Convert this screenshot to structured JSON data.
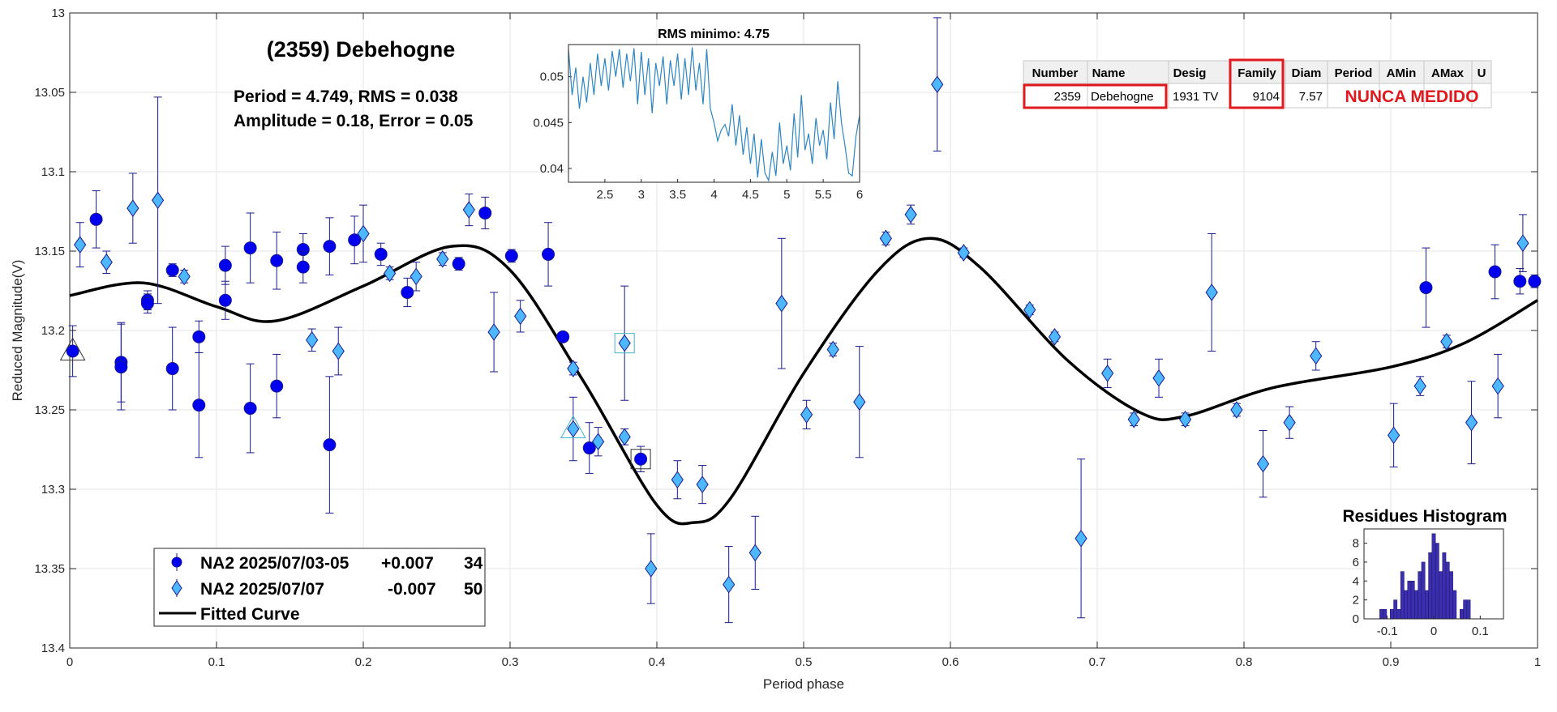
{
  "chart_data": [
    {
      "type": "scatter",
      "title": "(2359) Debehogne",
      "annotation_lines": [
        "Period =  4.749, RMS = 0.038",
        "Amplitude = 0.18, Error = 0.05"
      ],
      "xlabel": "Period phase",
      "ylabel": "Reduced Magnitude(V)",
      "xlim": [
        0,
        1
      ],
      "ylim": [
        13.4,
        13.0
      ],
      "y_reversed": true,
      "grid": true,
      "xticks": [
        "0",
        "0.1",
        "0.2",
        "0.3",
        "0.4",
        "0.5",
        "0.6",
        "0.7",
        "0.8",
        "0.9",
        "1"
      ],
      "yticks": [
        "13",
        "13.05",
        "13.1",
        "13.15",
        "13.2",
        "13.25",
        "13.3",
        "13.35",
        "13.4"
      ],
      "legend_position": "bottom-left",
      "legend": [
        {
          "label": "NA2 2025/07/03-05",
          "offset": "+0.007",
          "count": "34",
          "marker": "circle"
        },
        {
          "label": "NA2 2025/07/07",
          "offset": "-0.007",
          "count": "50",
          "marker": "diamond"
        },
        {
          "label": "Fitted Curve",
          "offset": "",
          "count": "",
          "marker": "line"
        }
      ],
      "colors": {
        "series1": "#0000ee",
        "series2": "#4db8ff",
        "curve": "#000000",
        "errorbar": "#1a1a8c"
      },
      "series": [
        {
          "name": "NA2 2025/07/03-05",
          "marker": "circle",
          "points": [
            [
              0.018,
              13.13,
              0.018
            ],
            [
              0.035,
              13.22,
              0.025
            ],
            [
              0.035,
              13.223,
              0.027
            ],
            [
              0.053,
              13.181,
              0.006
            ],
            [
              0.053,
              13.183,
              0.006
            ],
            [
              0.07,
              13.162,
              0.004
            ],
            [
              0.07,
              13.224,
              0.026
            ],
            [
              0.088,
              13.247,
              0.033
            ],
            [
              0.088,
              13.204,
              0.01
            ],
            [
              0.106,
              13.159,
              0.012
            ],
            [
              0.106,
              13.181,
              0.012
            ],
            [
              0.123,
              13.148,
              0.022
            ],
            [
              0.123,
              13.249,
              0.028
            ],
            [
              0.141,
              13.156,
              0.018
            ],
            [
              0.141,
              13.235,
              0.02
            ],
            [
              0.159,
              13.149,
              0.01
            ],
            [
              0.159,
              13.16,
              0.01
            ],
            [
              0.177,
              13.147,
              0.018
            ],
            [
              0.177,
              13.272,
              0.043
            ],
            [
              0.194,
              13.143,
              0.015
            ],
            [
              0.212,
              13.152,
              0.007
            ],
            [
              0.23,
              13.176,
              0.009
            ],
            [
              0.265,
              13.158,
              0.004
            ],
            [
              0.283,
              13.126,
              0.01
            ],
            [
              0.301,
              13.153,
              0.004
            ],
            [
              0.326,
              13.152,
              0.02
            ],
            [
              0.336,
              13.204,
              0.003
            ],
            [
              0.354,
              13.274,
              0.016
            ],
            [
              0.389,
              13.281,
              0.008
            ],
            [
              0.924,
              13.173,
              0.025
            ],
            [
              0.971,
              13.163,
              0.017
            ],
            [
              0.988,
              13.169,
              0.008
            ],
            [
              0.002,
              13.213,
              0.016
            ],
            [
              0.998,
              13.169,
              0.004
            ]
          ]
        },
        {
          "name": "NA2 2025/07/07",
          "marker": "diamond",
          "points": [
            [
              0.007,
              13.146,
              0.014
            ],
            [
              0.025,
              13.157,
              0.007
            ],
            [
              0.043,
              13.123,
              0.022
            ],
            [
              0.06,
              13.118,
              0.065
            ],
            [
              0.078,
              13.166,
              0.004
            ],
            [
              0.165,
              13.206,
              0.007
            ],
            [
              0.183,
              13.213,
              0.015
            ],
            [
              0.2,
              13.139,
              0.018
            ],
            [
              0.218,
              13.164,
              0.004
            ],
            [
              0.236,
              13.166,
              0.009
            ],
            [
              0.254,
              13.155,
              0.004
            ],
            [
              0.272,
              13.124,
              0.01
            ],
            [
              0.289,
              13.201,
              0.025
            ],
            [
              0.307,
              13.191,
              0.01
            ],
            [
              0.343,
              13.262,
              0.02
            ],
            [
              0.343,
              13.224,
              0.004
            ],
            [
              0.36,
              13.27,
              0.009
            ],
            [
              0.378,
              13.267,
              0.005
            ],
            [
              0.378,
              13.208,
              0.036
            ],
            [
              0.396,
              13.35,
              0.022
            ],
            [
              0.414,
              13.294,
              0.012
            ],
            [
              0.431,
              13.297,
              0.012
            ],
            [
              0.449,
              13.36,
              0.024
            ],
            [
              0.467,
              13.34,
              0.023
            ],
            [
              0.485,
              13.183,
              0.041
            ],
            [
              0.502,
              13.253,
              0.009
            ],
            [
              0.52,
              13.212,
              0.004
            ],
            [
              0.538,
              13.245,
              0.035
            ],
            [
              0.556,
              13.142,
              0.004
            ],
            [
              0.573,
              13.127,
              0.006
            ],
            [
              0.591,
              13.045,
              0.042
            ],
            [
              0.609,
              13.151,
              0.003
            ],
            [
              0.654,
              13.187,
              0.003
            ],
            [
              0.671,
              13.204,
              0.003
            ],
            [
              0.689,
              13.331,
              0.05
            ],
            [
              0.707,
              13.227,
              0.009
            ],
            [
              0.725,
              13.256,
              0.004
            ],
            [
              0.742,
              13.23,
              0.012
            ],
            [
              0.76,
              13.256,
              0.004
            ],
            [
              0.778,
              13.176,
              0.037
            ],
            [
              0.795,
              13.25,
              0.004
            ],
            [
              0.813,
              13.284,
              0.021
            ],
            [
              0.831,
              13.258,
              0.01
            ],
            [
              0.849,
              13.216,
              0.009
            ],
            [
              0.902,
              13.266,
              0.02
            ],
            [
              0.92,
              13.235,
              0.006
            ],
            [
              0.938,
              13.207,
              0.004
            ],
            [
              0.955,
              13.258,
              0.026
            ],
            [
              0.973,
              13.235,
              0.02
            ],
            [
              0.99,
              13.145,
              0.018
            ]
          ]
        }
      ],
      "fitted_curve": {
        "x": [
          0,
          0.05,
          0.1,
          0.14,
          0.2,
          0.26,
          0.3,
          0.35,
          0.4,
          0.425,
          0.45,
          0.5,
          0.55,
          0.585,
          0.62,
          0.68,
          0.73,
          0.76,
          0.82,
          0.9,
          0.95,
          1
        ],
        "y": [
          13.178,
          13.17,
          13.185,
          13.194,
          13.172,
          13.147,
          13.162,
          13.232,
          13.31,
          13.321,
          13.306,
          13.227,
          13.163,
          13.142,
          13.16,
          13.219,
          13.252,
          13.254,
          13.236,
          13.223,
          13.208,
          13.181
        ]
      },
      "highlighted_points": [
        {
          "x": 0.002,
          "y": 13.213,
          "marker": "triangle"
        },
        {
          "x": 0.343,
          "y": 13.262,
          "marker": "triangle"
        },
        {
          "x": 0.378,
          "y": 13.208,
          "marker": "square"
        },
        {
          "x": 0.389,
          "y": 13.281,
          "marker": "square"
        }
      ]
    },
    {
      "type": "line",
      "title": "RMS minimo: 4.75",
      "xlim": [
        2,
        6
      ],
      "ylim": [
        0.0385,
        0.0535
      ],
      "xticks": [
        "2.5",
        "3",
        "3.5",
        "4",
        "4.5",
        "5",
        "5.5",
        "6"
      ],
      "yticks": [
        "0.04",
        "0.045",
        "0.05"
      ],
      "x": [
        2.0,
        2.05,
        2.1,
        2.15,
        2.2,
        2.25,
        2.3,
        2.35,
        2.4,
        2.45,
        2.5,
        2.55,
        2.6,
        2.65,
        2.7,
        2.75,
        2.8,
        2.85,
        2.9,
        2.95,
        3.0,
        3.05,
        3.1,
        3.15,
        3.2,
        3.25,
        3.3,
        3.35,
        3.4,
        3.45,
        3.5,
        3.55,
        3.6,
        3.65,
        3.7,
        3.75,
        3.8,
        3.85,
        3.9,
        3.95,
        4.0,
        4.05,
        4.1,
        4.15,
        4.2,
        4.25,
        4.3,
        4.35,
        4.4,
        4.45,
        4.5,
        4.55,
        4.6,
        4.65,
        4.7,
        4.75,
        4.8,
        4.85,
        4.9,
        4.95,
        5.0,
        5.05,
        5.1,
        5.15,
        5.2,
        5.25,
        5.3,
        5.35,
        5.4,
        5.45,
        5.5,
        5.55,
        5.6,
        5.65,
        5.7,
        5.75,
        5.8,
        5.85,
        5.9,
        5.95,
        6.0
      ],
      "y": [
        0.053,
        0.048,
        0.051,
        0.0465,
        0.05,
        0.0472,
        0.0515,
        0.048,
        0.0525,
        0.049,
        0.052,
        0.0485,
        0.0528,
        0.05,
        0.053,
        0.0488,
        0.0525,
        0.0495,
        0.0531,
        0.047,
        0.0527,
        0.048,
        0.052,
        0.046,
        0.0515,
        0.049,
        0.0522,
        0.047,
        0.0518,
        0.049,
        0.0525,
        0.0475,
        0.052,
        0.048,
        0.0532,
        0.0485,
        0.0515,
        0.047,
        0.053,
        0.0465,
        0.045,
        0.043,
        0.0442,
        0.0448,
        0.0435,
        0.047,
        0.0425,
        0.0458,
        0.0415,
        0.0445,
        0.0405,
        0.0438,
        0.039,
        0.0432,
        0.0395,
        0.0387,
        0.0418,
        0.0392,
        0.045,
        0.0405,
        0.0425,
        0.0398,
        0.046,
        0.0412,
        0.048,
        0.042,
        0.0438,
        0.0405,
        0.0455,
        0.0425,
        0.0442,
        0.041,
        0.0472,
        0.0432,
        0.0495,
        0.045,
        0.0425,
        0.0395,
        0.0392,
        0.0435,
        0.0458
      ]
    },
    {
      "type": "bar",
      "title": "Residues Histogram",
      "xlim": [
        -0.15,
        0.15
      ],
      "ylim": [
        0,
        9.5
      ],
      "xticks": [
        "-0.1",
        "0",
        "0.1"
      ],
      "yticks": [
        "0",
        "2",
        "4",
        "6",
        "8"
      ],
      "bin_width": 0.0075,
      "bin_centers": [
        -0.1125,
        -0.105,
        -0.09,
        -0.0825,
        -0.075,
        -0.0675,
        -0.06,
        -0.0525,
        -0.045,
        -0.0375,
        -0.03,
        -0.0225,
        -0.015,
        -0.0075,
        0.0,
        0.0075,
        0.015,
        0.0225,
        0.03,
        0.0375,
        0.045,
        0.06,
        0.0675,
        0.075
      ],
      "values": [
        1,
        1,
        1,
        2,
        1,
        5,
        3,
        4,
        4,
        3,
        5,
        6,
        3,
        7,
        9,
        8,
        5,
        7,
        6,
        5,
        3,
        1,
        2,
        2
      ]
    }
  ],
  "table": {
    "headers": [
      "Number",
      "Name",
      "Desig",
      "Family",
      "Diam",
      "Period",
      "AMin",
      "AMax",
      "U"
    ],
    "row": {
      "number": "2359",
      "name": "Debehogne",
      "desig": "1931 TV",
      "family": "9104",
      "diam": "7.57",
      "note": "NUNCA MEDIDO"
    },
    "highlight_color": "#e0191e"
  }
}
